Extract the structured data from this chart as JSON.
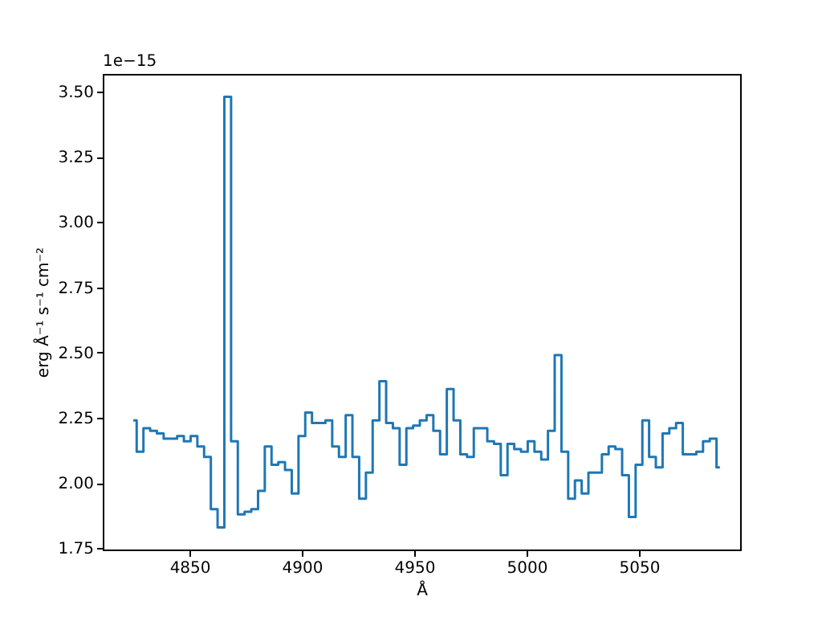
{
  "chart_data": {
    "type": "step",
    "xlabel": "Å",
    "ylabel": "erg Å⁻¹ s⁻¹ cm⁻²",
    "annotations": [
      "1e−15"
    ],
    "x": [
      4825,
      4828,
      4831,
      4834,
      4837,
      4840,
      4843,
      4846,
      4849,
      4852,
      4855,
      4858,
      4861,
      4864,
      4867,
      4870,
      4873,
      4876,
      4879,
      4882,
      4885,
      4888,
      4891,
      4894,
      4897,
      4900,
      4903,
      4906,
      4909,
      4912,
      4915,
      4918,
      4921,
      4924,
      4927,
      4930,
      4933,
      4936,
      4939,
      4942,
      4945,
      4948,
      4951,
      4954,
      4957,
      4960,
      4963,
      4966,
      4969,
      4972,
      4975,
      4978,
      4981,
      4984,
      4987,
      4990,
      4993,
      4996,
      4999,
      5002,
      5005,
      5008,
      5011,
      5014,
      5017,
      5020,
      5023,
      5026,
      5029,
      5032,
      5035,
      5038,
      5041,
      5044,
      5047,
      5050,
      5053,
      5056,
      5059,
      5062,
      5065,
      5068,
      5071,
      5074,
      5077,
      5080,
      5083,
      5086
    ],
    "series": [
      {
        "color": "#1f77b4",
        "values": [
          2.24,
          2.12,
          2.21,
          2.2,
          2.19,
          2.17,
          2.17,
          2.18,
          2.16,
          2.18,
          2.14,
          2.1,
          1.9,
          1.83,
          3.48,
          2.16,
          1.88,
          1.89,
          1.9,
          1.97,
          2.14,
          2.07,
          2.08,
          2.05,
          1.96,
          2.18,
          2.27,
          2.23,
          2.23,
          2.24,
          2.14,
          2.1,
          2.26,
          2.1,
          1.94,
          2.04,
          2.24,
          2.39,
          2.23,
          2.21,
          2.07,
          2.21,
          2.22,
          2.24,
          2.26,
          2.2,
          2.11,
          2.36,
          2.24,
          2.11,
          2.1,
          2.21,
          2.21,
          2.16,
          2.15,
          2.03,
          2.15,
          2.13,
          2.12,
          2.16,
          2.12,
          2.09,
          2.2,
          2.49,
          2.12,
          1.94,
          2.01,
          1.96,
          2.04,
          2.04,
          2.11,
          2.14,
          2.13,
          2.03,
          1.87,
          2.07,
          2.24,
          2.1,
          2.06,
          2.19,
          2.21,
          2.23,
          2.11,
          2.11,
          2.12,
          2.16,
          2.17,
          2.06
        ]
      }
    ],
    "xlim": [
      4811.4,
      5095
    ],
    "ylim": [
      1.745,
      3.568
    ],
    "xticks": [
      {
        "value": 4850,
        "label": "4850"
      },
      {
        "value": 4900,
        "label": "4900"
      },
      {
        "value": 4950,
        "label": "4950"
      },
      {
        "value": 5000,
        "label": "5000"
      },
      {
        "value": 5050,
        "label": "5050"
      }
    ],
    "yticks": [
      1.75,
      {
        "value": 2.0,
        "label": "2.00"
      },
      2.25,
      {
        "value": 2.5,
        "label": "2.50"
      },
      2.75,
      {
        "value": 3.0,
        "label": "3.00"
      },
      3.25,
      {
        "value": 3.5,
        "label": "3.50"
      }
    ],
    "grid": false,
    "line_style": "solid",
    "marker": "none"
  }
}
